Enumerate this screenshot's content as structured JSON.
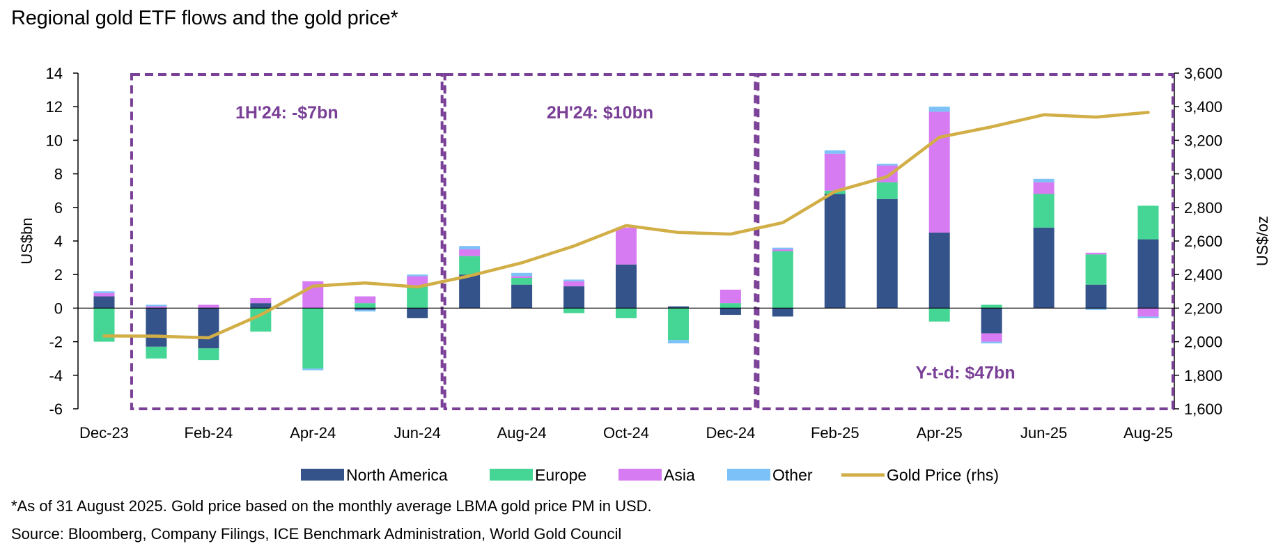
{
  "title": "Regional gold ETF flows and the gold price*",
  "footnote": "*As of 31 August 2025. Gold price based on the monthly average LBMA gold price PM in USD.",
  "source": "Source: Bloomberg, Company Filings, ICE Benchmark Administration, World Gold Council",
  "colors": {
    "north_america": "#34538a",
    "europe": "#45d594",
    "asia": "#d77bf2",
    "other": "#7cc1f7",
    "gold_price": "#d1ae46",
    "period_box": "#7a3f96"
  },
  "chart_data": {
    "type": "bar",
    "stacked": true,
    "categories": [
      "Dec-23",
      "Jan-24",
      "Feb-24",
      "Mar-24",
      "Apr-24",
      "May-24",
      "Jun-24",
      "Jul-24",
      "Aug-24",
      "Sep-24",
      "Oct-24",
      "Nov-24",
      "Dec-24",
      "Jan-25",
      "Feb-25",
      "Mar-25",
      "Apr-25",
      "May-25",
      "Jun-25",
      "Jul-25",
      "Aug-25"
    ],
    "x_tick_labels": [
      "Dec-23",
      "Feb-24",
      "Apr-24",
      "Jun-24",
      "Aug-24",
      "Oct-24",
      "Dec-24",
      "Feb-25",
      "Apr-25",
      "Jun-25",
      "Aug-25"
    ],
    "ylabel": "US$bn",
    "ylabel_right": "US$/oz",
    "ylim": [
      -6,
      14
    ],
    "y_ticks": [
      "-6",
      "-4",
      "-2",
      "0",
      "2",
      "4",
      "6",
      "8",
      "10",
      "12",
      "14"
    ],
    "ylim_right": [
      1600,
      3600
    ],
    "y_ticks_right": [
      "1,600",
      "1,800",
      "2,000",
      "2,200",
      "2,400",
      "2,600",
      "2,800",
      "3,000",
      "3,200",
      "3,400",
      "3,600"
    ],
    "legend_position": "bottom",
    "series": [
      {
        "name": "North America",
        "values": [
          0.7,
          -2.3,
          -2.4,
          0.3,
          0.0,
          -0.1,
          -0.6,
          2.0,
          1.4,
          1.3,
          2.6,
          0.1,
          -0.4,
          -0.5,
          6.8,
          6.5,
          4.5,
          -1.5,
          4.8,
          1.4,
          4.1
        ]
      },
      {
        "name": "Europe",
        "values": [
          -2.0,
          -0.7,
          -0.7,
          -1.4,
          -3.6,
          0.3,
          1.3,
          1.1,
          0.4,
          -0.3,
          -0.6,
          -1.9,
          0.3,
          3.4,
          0.2,
          1.0,
          -0.8,
          0.2,
          2.0,
          1.8,
          2.0
        ]
      },
      {
        "name": "Asia",
        "values": [
          0.2,
          0.1,
          0.2,
          0.3,
          1.6,
          0.4,
          0.6,
          0.4,
          0.1,
          0.3,
          2.2,
          0.0,
          0.8,
          0.1,
          2.2,
          1.0,
          7.2,
          -0.5,
          0.7,
          0.1,
          -0.5
        ]
      },
      {
        "name": "Other",
        "values": [
          0.1,
          0.1,
          0.0,
          0.0,
          -0.1,
          -0.1,
          0.1,
          0.2,
          0.2,
          0.1,
          0.0,
          -0.2,
          0.0,
          0.1,
          0.2,
          0.1,
          0.3,
          -0.1,
          0.2,
          -0.1,
          -0.1
        ]
      }
    ],
    "line_series": {
      "name": "Gold Price (rhs)",
      "axis": "right",
      "values": [
        2034,
        2033,
        2023,
        2160,
        2331,
        2350,
        2326,
        2392,
        2470,
        2570,
        2692,
        2651,
        2641,
        2709,
        2895,
        2983,
        3218,
        3280,
        3352,
        3338,
        3366
      ]
    },
    "annotations": [
      {
        "text": "1H'24: -$7bn",
        "start": "Jan-24",
        "end": "Jun-24"
      },
      {
        "text": "2H'24: $10bn",
        "start": "Jul-24",
        "end": "Dec-24"
      },
      {
        "text": "Y-t-d: $47bn",
        "start": "Jan-25",
        "end": "Aug-25"
      }
    ]
  }
}
